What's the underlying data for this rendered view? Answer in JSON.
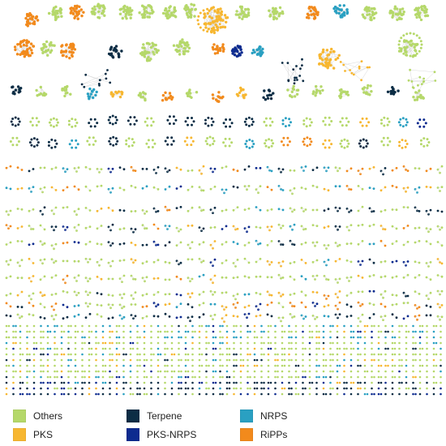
{
  "legend": {
    "items": [
      {
        "label": "Others",
        "color": "#b5d86a"
      },
      {
        "label": "Terpene",
        "color": "#0c2d45"
      },
      {
        "label": "NRPS",
        "color": "#2aa0c2"
      },
      {
        "label": "PKS",
        "color": "#f7b731"
      },
      {
        "label": "PKS-NRPS",
        "color": "#0d2b8f"
      },
      {
        "label": "RiPPs",
        "color": "#f28a1c"
      }
    ]
  }
}
